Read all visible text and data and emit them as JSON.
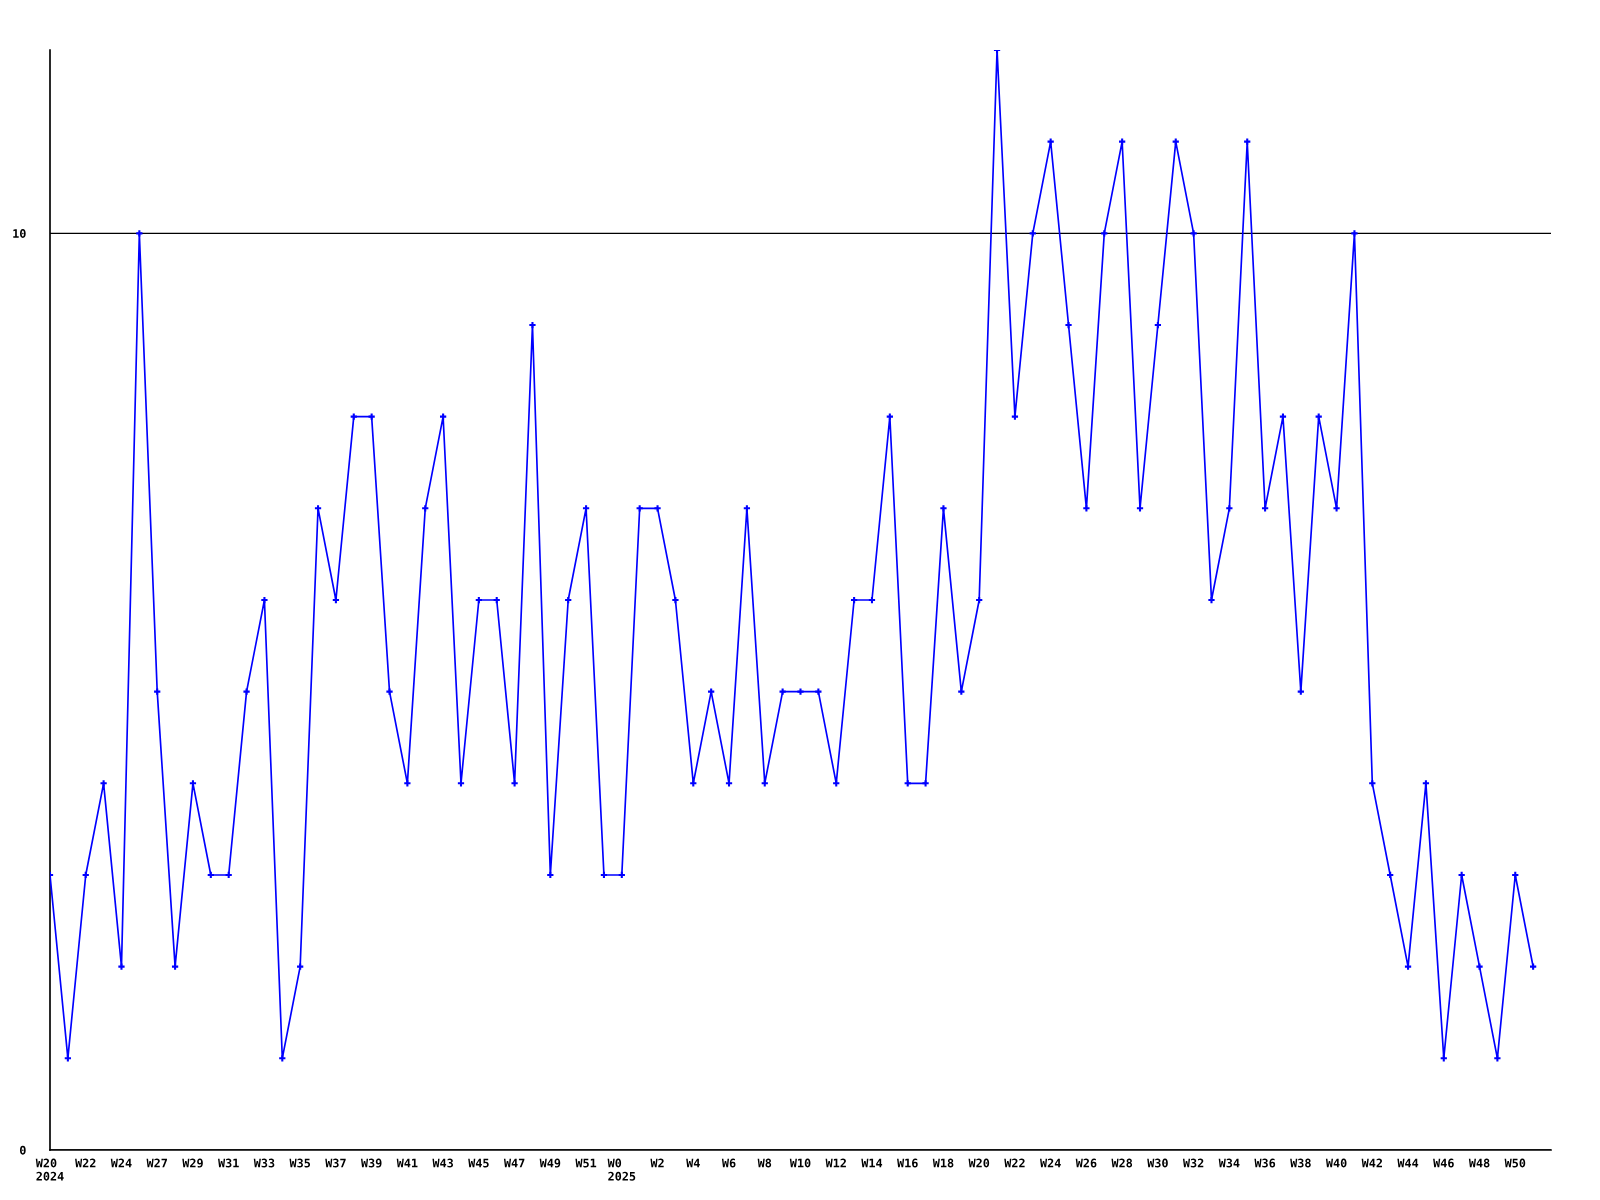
{
  "chart_data": {
    "type": "line",
    "categories": [
      "W20\n2024",
      null,
      "W22",
      null,
      "W24",
      null,
      "W27",
      null,
      "W29",
      null,
      "W31",
      null,
      "W33",
      null,
      "W35",
      null,
      "W37",
      null,
      "W39",
      null,
      "W41",
      null,
      "W43",
      null,
      "W45",
      null,
      "W47",
      null,
      "W49",
      null,
      "W51",
      null,
      "W0\n2025",
      null,
      "W2",
      null,
      "W4",
      null,
      "W6",
      null,
      "W8",
      null,
      "W10",
      null,
      "W12",
      null,
      "W14",
      null,
      "W16",
      null,
      "W18",
      null,
      "W20",
      null,
      "W22",
      null,
      "W24",
      null,
      "W26",
      null,
      "W28",
      null,
      "W30",
      null,
      "W32",
      null,
      "W34",
      null,
      "W36",
      null,
      "W38",
      null,
      "W40",
      null,
      "W42",
      null,
      "W44",
      null,
      "W46",
      null,
      "W48",
      null,
      "W50",
      null
    ],
    "values": [
      3,
      1,
      3,
      4,
      2,
      10,
      5,
      2,
      4,
      3,
      3,
      5,
      6,
      1,
      2,
      7,
      6,
      8,
      8,
      5,
      4,
      7,
      8,
      4,
      6,
      6,
      4,
      9,
      3,
      6,
      7,
      3,
      3,
      7,
      7,
      6,
      4,
      5,
      4,
      7,
      4,
      5,
      5,
      5,
      4,
      6,
      6,
      8,
      4,
      4,
      7,
      5,
      6,
      12,
      8,
      10,
      11,
      9,
      7,
      10,
      11,
      7,
      9,
      11,
      10,
      6,
      7,
      11,
      7,
      8,
      5,
      8,
      7,
      10,
      4,
      3,
      2,
      4,
      1,
      3,
      2,
      1,
      3,
      2
    ],
    "color": "#0000ff",
    "ylim": [
      0,
      12
    ],
    "yticks": [
      0,
      10
    ],
    "grid": "y",
    "marker": "cross",
    "line_style": "solid"
  }
}
